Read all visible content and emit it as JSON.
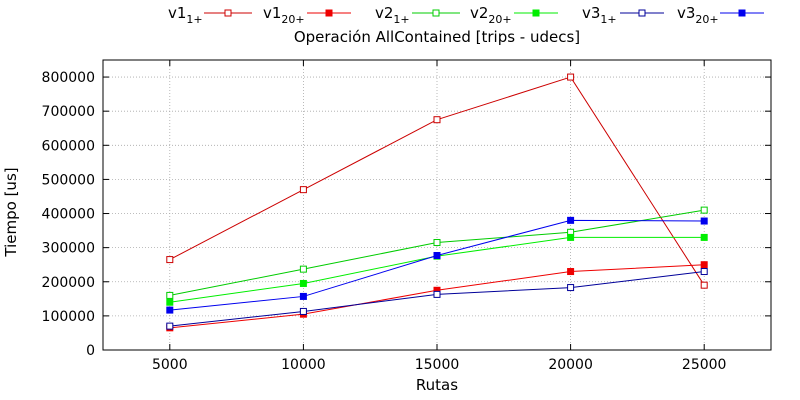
{
  "chart_data": {
    "type": "line",
    "title": "Operación AllContained [trips - udecs]",
    "xlabel": "Rutas",
    "ylabel": "Tiempo [us]",
    "x": [
      5000,
      10000,
      15000,
      20000,
      25000
    ],
    "xlim": [
      2500,
      27500
    ],
    "ylim": [
      0,
      850000
    ],
    "xticks": [
      "5000",
      "10000",
      "15000",
      "20000",
      "25000"
    ],
    "yticks": [
      "0",
      "100000",
      "200000",
      "300000",
      "400000",
      "500000",
      "600000",
      "700000",
      "800000"
    ],
    "grid": true,
    "legend_position": "top",
    "series": [
      {
        "name": "v1",
        "sub": "1+",
        "color": "#cc0000",
        "marker": "open-square",
        "values": [
          265000,
          470000,
          675000,
          800000,
          190000
        ]
      },
      {
        "name": "v1",
        "sub": "20+",
        "color": "#ee0000",
        "marker": "filled-square",
        "values": [
          65000,
          105000,
          175000,
          230000,
          250000
        ]
      },
      {
        "name": "v2",
        "sub": "1+",
        "color": "#00cc00",
        "marker": "open-square",
        "values": [
          160000,
          237000,
          315000,
          345000,
          410000
        ]
      },
      {
        "name": "v2",
        "sub": "20+",
        "color": "#00ee00",
        "marker": "filled-square",
        "values": [
          140000,
          195000,
          275000,
          330000,
          330000
        ]
      },
      {
        "name": "v3",
        "sub": "1+",
        "color": "#000099",
        "marker": "open-square",
        "values": [
          70000,
          113000,
          163000,
          183000,
          230000
        ]
      },
      {
        "name": "v3",
        "sub": "20+",
        "color": "#0000ee",
        "marker": "filled-square",
        "values": [
          117000,
          157000,
          277000,
          380000,
          378000
        ]
      }
    ]
  }
}
